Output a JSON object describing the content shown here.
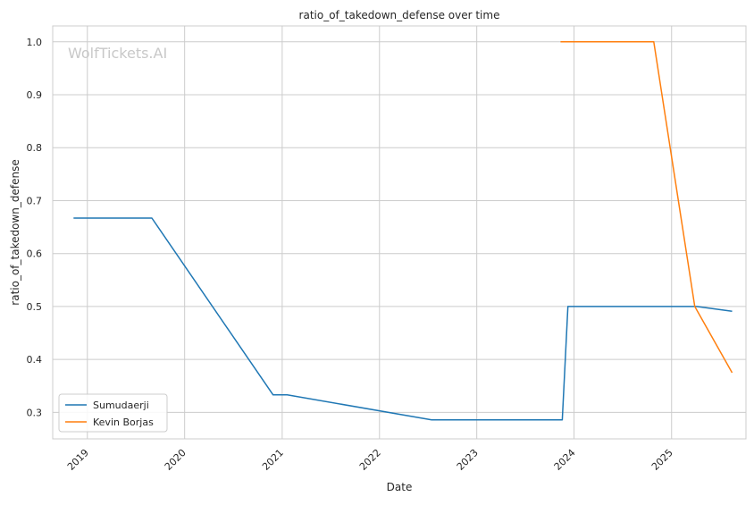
{
  "chart_data": {
    "type": "line",
    "title": "ratio_of_takedown_defense over time",
    "xlabel": "Date",
    "ylabel": "ratio_of_takedown_defense",
    "watermark": "WolfTickets.AI",
    "xlim": [
      "2018-08-24",
      "2025-10-07"
    ],
    "ylim": [
      0.25,
      1.03
    ],
    "x_ticks": [
      "2019",
      "2020",
      "2021",
      "2022",
      "2023",
      "2024",
      "2025"
    ],
    "y_ticks": [
      "0.3",
      "0.4",
      "0.5",
      "0.6",
      "0.7",
      "0.8",
      "0.9",
      "1.0"
    ],
    "grid": true,
    "legend_position": "lower-left",
    "series": [
      {
        "name": "Sumudaerji",
        "color": "#1f77b4",
        "points": [
          {
            "x": "2018-11-10",
            "y": 0.667
          },
          {
            "x": "2019-08-31",
            "y": 0.667
          },
          {
            "x": "2020-11-28",
            "y": 0.333
          },
          {
            "x": "2021-01-20",
            "y": 0.333
          },
          {
            "x": "2022-07-16",
            "y": 0.286
          },
          {
            "x": "2023-11-18",
            "y": 0.286
          },
          {
            "x": "2023-12-09",
            "y": 0.5
          },
          {
            "x": "2025-04-05",
            "y": 0.5
          },
          {
            "x": "2025-08-16",
            "y": 0.491
          }
        ]
      },
      {
        "name": "Kevin Borjas",
        "color": "#ff7f0e",
        "points": [
          {
            "x": "2023-11-11",
            "y": 1.0
          },
          {
            "x": "2024-10-26",
            "y": 1.0
          },
          {
            "x": "2025-03-29",
            "y": 0.5
          },
          {
            "x": "2025-08-16",
            "y": 0.375
          }
        ]
      }
    ]
  }
}
